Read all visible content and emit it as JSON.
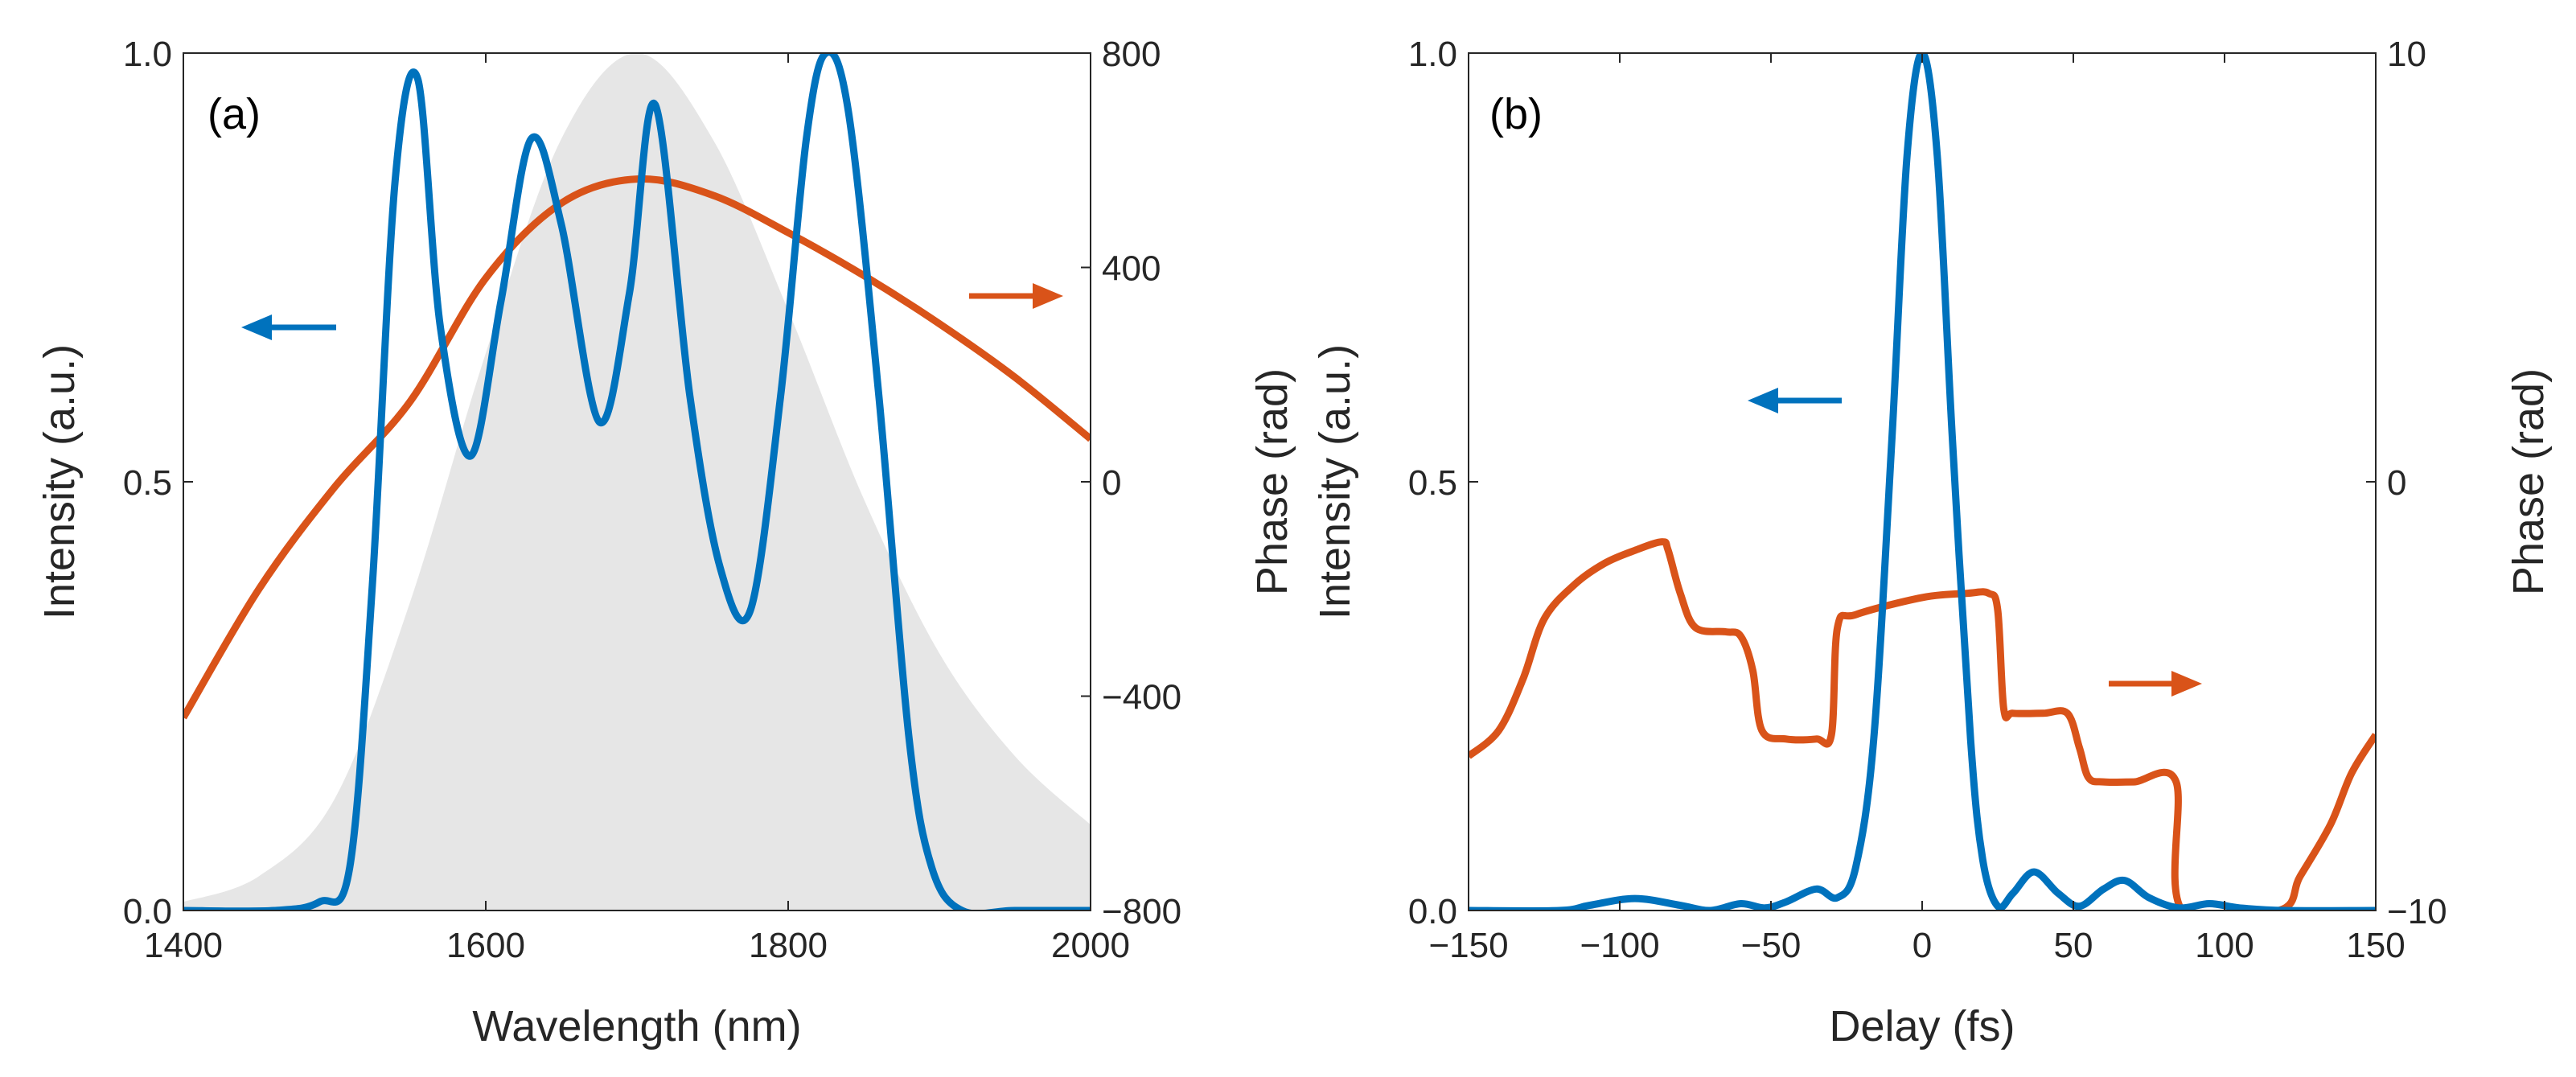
{
  "colors": {
    "intensity": "#0072BD",
    "phase": "#D95319",
    "reference": "#E6E6E6",
    "axis": "#262626"
  },
  "chart_data": [
    {
      "type": "line",
      "panel_label": "(a)",
      "xlabel": "Wavelength (nm)",
      "ylabel_left": "Intensity (a.u.)",
      "ylabel_right": "Phase (rad)",
      "xlim": [
        1400,
        2000
      ],
      "ylim_left": [
        0,
        1
      ],
      "ylim_right": [
        -800,
        800
      ],
      "x_ticks": [
        1400,
        1600,
        1800,
        2000
      ],
      "x_tick_labels": [
        "1400",
        "1600",
        "1800",
        "2000"
      ],
      "y_left_ticks": [
        0,
        0.5,
        1
      ],
      "y_left_tick_labels": [
        "0.0",
        "0.5",
        "1.0"
      ],
      "y_right_ticks": [
        -800,
        -400,
        0,
        400,
        800
      ],
      "y_right_tick_labels": [
        "−800",
        "−400",
        "0",
        "400",
        "800"
      ],
      "arrow_left_direction": "left",
      "arrow_right_direction": "right",
      "series": [
        {
          "name": "Reference spectrum",
          "axis": "left",
          "style": "fill",
          "x": [
            1400,
            1450,
            1500,
            1550,
            1600,
            1650,
            1700,
            1750,
            1800,
            1850,
            1900,
            1950,
            2000
          ],
          "y": [
            0.01,
            0.04,
            0.13,
            0.36,
            0.65,
            0.9,
            1.0,
            0.9,
            0.7,
            0.48,
            0.3,
            0.18,
            0.1
          ]
        },
        {
          "name": "Intensity",
          "axis": "left",
          "style": "line",
          "x": [
            1400,
            1460,
            1490,
            1510,
            1525,
            1540,
            1555,
            1570,
            1590,
            1610,
            1630,
            1650,
            1675,
            1695,
            1712,
            1735,
            1755,
            1775,
            1795,
            1812,
            1825,
            1840,
            1860,
            1880,
            1895,
            1915,
            1950,
            2000
          ],
          "y": [
            0.0,
            0.0,
            0.01,
            0.05,
            0.38,
            0.85,
            0.97,
            0.68,
            0.53,
            0.71,
            0.9,
            0.8,
            0.57,
            0.72,
            0.94,
            0.6,
            0.4,
            0.35,
            0.6,
            0.9,
            1.0,
            0.93,
            0.6,
            0.2,
            0.05,
            0.0,
            0.0,
            0.0
          ]
        },
        {
          "name": "Phase",
          "axis": "right",
          "style": "line",
          "x": [
            1400,
            1450,
            1500,
            1550,
            1600,
            1650,
            1700,
            1750,
            1800,
            1850,
            1900,
            1950,
            2000
          ],
          "y": [
            -440,
            -200,
            -10,
            150,
            380,
            520,
            565,
            535,
            465,
            385,
            295,
            195,
            80
          ]
        }
      ]
    },
    {
      "type": "line",
      "panel_label": "(b)",
      "xlabel": "Delay (fs)",
      "ylabel_left": "Intensity (a.u.)",
      "ylabel_right": "Phase (rad)",
      "xlim": [
        -150,
        150
      ],
      "ylim_left": [
        0,
        1
      ],
      "ylim_right": [
        -10,
        10
      ],
      "x_ticks": [
        -150,
        -100,
        -50,
        0,
        50,
        100,
        150
      ],
      "x_tick_labels": [
        "−150",
        "−100",
        "−50",
        "0",
        "50",
        "100",
        "150"
      ],
      "y_left_ticks": [
        0,
        0.5,
        1
      ],
      "y_left_tick_labels": [
        "0.0",
        "0.5",
        "1.0"
      ],
      "y_right_ticks": [
        -10,
        0,
        10
      ],
      "y_right_tick_labels": [
        "−10",
        "0",
        "10"
      ],
      "arrow_left_direction": "left",
      "arrow_right_direction": "right",
      "series": [
        {
          "name": "Intensity",
          "axis": "left",
          "style": "line",
          "x": [
            -150,
            -120,
            -110,
            -95,
            -80,
            -70,
            -60,
            -52,
            -45,
            -35,
            -28,
            -22,
            -16,
            -10,
            -5,
            0,
            5,
            10,
            16,
            20,
            25,
            30,
            37,
            45,
            52,
            60,
            67,
            75,
            85,
            95,
            105,
            120,
            150
          ],
          "y": [
            0.0,
            0.0,
            0.006,
            0.014,
            0.006,
            0.0,
            0.008,
            0.003,
            0.01,
            0.025,
            0.015,
            0.05,
            0.2,
            0.55,
            0.88,
            1.0,
            0.88,
            0.55,
            0.2,
            0.06,
            0.005,
            0.02,
            0.045,
            0.02,
            0.005,
            0.025,
            0.035,
            0.015,
            0.003,
            0.008,
            0.003,
            0.0,
            0.0
          ]
        },
        {
          "name": "Phase",
          "axis": "right",
          "style": "line",
          "x": [
            -150,
            -140,
            -132,
            -125,
            -115,
            -105,
            -95,
            -86,
            -84,
            -80,
            -75,
            -65,
            -60,
            -56,
            -53,
            -45,
            -35,
            -30,
            -28,
            -22,
            0,
            15,
            22,
            25,
            27,
            30,
            40,
            48,
            52,
            55,
            60,
            70,
            84,
            86,
            118,
            125,
            135,
            142,
            150
          ],
          "y": [
            -6.4,
            -5.8,
            -4.6,
            -3.2,
            -2.4,
            -1.9,
            -1.6,
            -1.4,
            -1.6,
            -2.6,
            -3.4,
            -3.5,
            -3.6,
            -4.4,
            -5.8,
            -6.0,
            -6.0,
            -5.9,
            -3.4,
            -3.1,
            -2.7,
            -2.6,
            -2.6,
            -3.0,
            -5.3,
            -5.4,
            -5.4,
            -5.4,
            -6.2,
            -6.9,
            -7.0,
            -7.0,
            -7.0,
            -10.0,
            -10.0,
            -9.2,
            -8.0,
            -6.8,
            -5.9
          ]
        }
      ]
    }
  ]
}
